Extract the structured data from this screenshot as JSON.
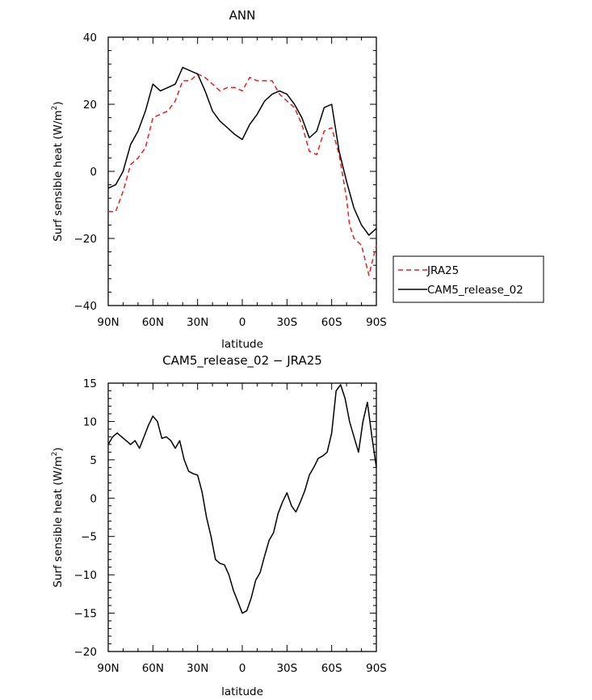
{
  "chart_data": [
    {
      "type": "line",
      "title": "ANN",
      "xlabel": "latitude",
      "ylabel": "Surf sensible heat (W/m2)",
      "ylabel_main": "Surf sensible heat (W/m",
      "ylabel_sup": "2",
      "ylabel_tail": ")",
      "xlim": [
        90,
        -90
      ],
      "ylim": [
        -40,
        40
      ],
      "xticks": [
        90,
        60,
        30,
        0,
        -30,
        -60,
        -90
      ],
      "xtick_labels": [
        "90N",
        "60N",
        "30N",
        "0",
        "30S",
        "60S",
        "90S"
      ],
      "yticks": [
        -40,
        -20,
        0,
        20,
        40
      ],
      "ytick_labels": [
        "−40",
        "−20",
        "0",
        "20",
        "40"
      ],
      "legend": {
        "placement": "right",
        "entries": [
          "JRA25",
          "CAM5_release_02"
        ]
      },
      "series": [
        {
          "name": "JRA25",
          "color": "#e8201e",
          "dash": "dashed",
          "x": [
            90,
            85,
            80,
            75,
            70,
            65,
            60,
            55,
            50,
            45,
            40,
            35,
            30,
            25,
            20,
            15,
            10,
            5,
            0,
            -5,
            -10,
            -15,
            -20,
            -25,
            -30,
            -35,
            -40,
            -45,
            -50,
            -55,
            -60,
            -65,
            -70,
            -72,
            -75,
            -80,
            -85,
            -90
          ],
          "y": [
            -12,
            -12,
            -6,
            2,
            4,
            7,
            16,
            17,
            18,
            21,
            27,
            27,
            29,
            28,
            26,
            24,
            25,
            25,
            24,
            28,
            27,
            27,
            27,
            23,
            21,
            19,
            14,
            6,
            5,
            12,
            13,
            5,
            -8,
            -16,
            -20,
            -22,
            -31,
            -22
          ]
        },
        {
          "name": "CAM5_release_02",
          "color": "#000000",
          "dash": "solid",
          "x": [
            90,
            85,
            80,
            75,
            70,
            65,
            60,
            55,
            50,
            45,
            40,
            35,
            30,
            25,
            20,
            15,
            10,
            5,
            0,
            -5,
            -10,
            -15,
            -20,
            -25,
            -30,
            -35,
            -40,
            -45,
            -50,
            -55,
            -60,
            -65,
            -70,
            -75,
            -80,
            -85,
            -90
          ],
          "y": [
            -5,
            -4,
            0,
            8,
            12,
            18,
            26,
            24,
            25,
            26,
            31,
            30,
            29,
            24,
            18,
            15,
            13,
            11,
            9.5,
            14,
            17,
            21,
            23,
            24,
            23,
            20,
            16,
            10,
            12,
            19,
            20,
            6,
            -3,
            -11,
            -16,
            -19,
            -17
          ]
        }
      ]
    },
    {
      "type": "line",
      "title": "CAM5_release_02 − JRA25",
      "xlabel": "latitude",
      "ylabel": "Surf sensible heat (W/m2)",
      "ylabel_main": "Surf sensible heat (W/m",
      "ylabel_sup": "2",
      "ylabel_tail": ")",
      "xlim": [
        90,
        -90
      ],
      "ylim": [
        -20,
        15
      ],
      "xticks": [
        90,
        60,
        30,
        0,
        -30,
        -60,
        -90
      ],
      "xtick_labels": [
        "90N",
        "60N",
        "30N",
        "0",
        "30S",
        "60S",
        "90S"
      ],
      "yticks": [
        -20,
        -15,
        -10,
        -5,
        0,
        5,
        10,
        15
      ],
      "ytick_labels": [
        "−20",
        "−15",
        "−10",
        "−5",
        "0",
        "5",
        "10",
        "15"
      ],
      "series": [
        {
          "color": "#000000",
          "dash": "solid",
          "x": [
            90,
            87,
            84,
            81,
            78,
            75,
            72,
            69,
            66,
            63,
            60,
            57,
            54,
            51,
            48,
            45,
            42,
            39,
            36,
            33,
            30,
            27,
            24,
            21,
            18,
            15,
            12,
            9,
            6,
            3,
            0,
            -3,
            -6,
            -9,
            -12,
            -15,
            -18,
            -21,
            -24,
            -27,
            -30,
            -33,
            -36,
            -39,
            -42,
            -45,
            -48,
            -51,
            -54,
            -57,
            -60,
            -63,
            -66,
            -69,
            -72,
            -75,
            -78,
            -81,
            -84,
            -87,
            -90
          ],
          "y": [
            7,
            8,
            8.5,
            8,
            7.5,
            7,
            7.5,
            6.5,
            8,
            9.5,
            10.7,
            10,
            7.8,
            8,
            7.5,
            6.5,
            7.5,
            5,
            3.5,
            3.2,
            3,
            0.8,
            -2.5,
            -5,
            -8,
            -8.5,
            -8.7,
            -10,
            -12,
            -13.5,
            -15,
            -14.7,
            -13,
            -10.7,
            -9.7,
            -7.5,
            -5.5,
            -4.5,
            -2,
            -0.5,
            0.7,
            -1,
            -1.8,
            -0.5,
            1,
            3,
            4,
            5.2,
            5.5,
            6,
            8.5,
            14,
            14.8,
            13,
            10,
            8,
            6,
            10,
            12.5,
            8,
            4
          ]
        }
      ]
    }
  ]
}
